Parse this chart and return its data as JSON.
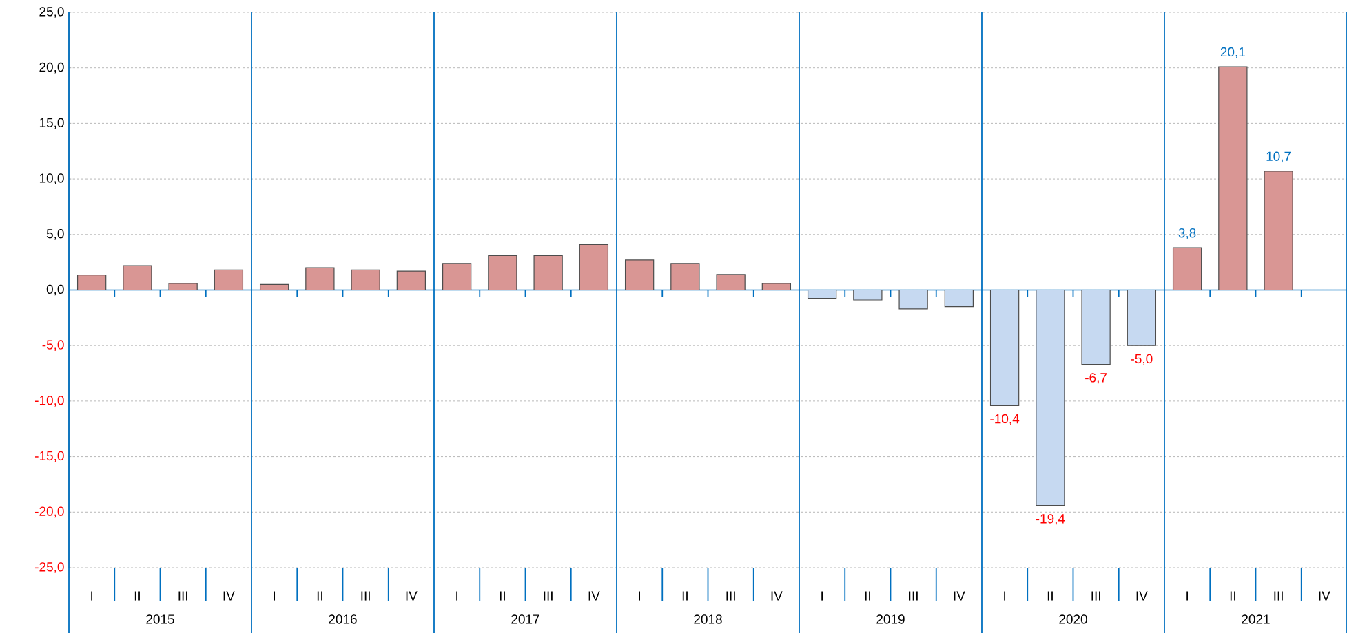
{
  "chart_data": {
    "type": "bar",
    "categories": [
      "I",
      "II",
      "III",
      "IV",
      "I",
      "II",
      "III",
      "IV",
      "I",
      "II",
      "III",
      "IV",
      "I",
      "II",
      "III",
      "IV",
      "I",
      "II",
      "III",
      "IV",
      "I",
      "II",
      "III",
      "IV",
      "I",
      "II",
      "III",
      "IV"
    ],
    "values": [
      1.35,
      2.2,
      0.6,
      1.8,
      0.5,
      2.0,
      1.8,
      1.7,
      2.4,
      3.1,
      3.1,
      4.1,
      2.7,
      2.4,
      1.4,
      0.6,
      -0.75,
      -0.9,
      -1.7,
      -1.5,
      -10.4,
      -19.4,
      -6.7,
      -5.0,
      3.8,
      20.1,
      10.7,
      null
    ],
    "colors": [
      "#d99694",
      "#d99694",
      "#d99694",
      "#d99694",
      "#d99694",
      "#d99694",
      "#d99694",
      "#d99694",
      "#d99694",
      "#d99694",
      "#d99694",
      "#d99694",
      "#d99694",
      "#d99694",
      "#d99694",
      "#d99694",
      "#c6d9f1",
      "#c6d9f1",
      "#c6d9f1",
      "#c6d9f1",
      "#c6d9f1",
      "#c6d9f1",
      "#c6d9f1",
      "#c6d9f1",
      "#d99694",
      "#d99694",
      "#d99694",
      "#d99694"
    ],
    "value_labels": [
      null,
      null,
      null,
      null,
      null,
      null,
      null,
      null,
      null,
      null,
      null,
      null,
      null,
      null,
      null,
      null,
      null,
      null,
      null,
      null,
      "-10,4",
      "-19,4",
      "-6,7",
      "-5,0",
      "3,8",
      "20,1",
      "10,7",
      null
    ],
    "annotations": [
      "2015",
      "2016",
      "2017",
      "2018",
      "2019",
      "2020",
      "2021"
    ],
    "ylim": [
      -25,
      25
    ],
    "yticks": [
      {
        "value": -25,
        "label": "-25,0"
      },
      {
        "value": -20,
        "label": "-20,0"
      },
      {
        "value": -15,
        "label": "-15,0"
      },
      {
        "value": -10,
        "label": "-10,0"
      },
      {
        "value": -5,
        "label": "-5,0"
      },
      {
        "value": 0,
        "label": "0,0"
      },
      {
        "value": 5,
        "label": "5,0"
      },
      {
        "value": 10,
        "label": "10,0"
      },
      {
        "value": 15,
        "label": "15,0"
      },
      {
        "value": 20,
        "label": "20,0"
      },
      {
        "value": 25,
        "label": "25,0"
      }
    ],
    "grid": "y"
  }
}
